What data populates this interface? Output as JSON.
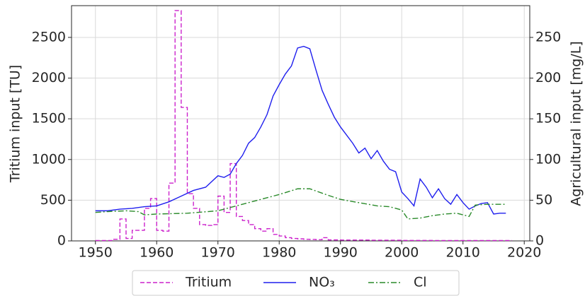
{
  "chart_data": {
    "type": "line",
    "x_label": null,
    "y_label": "Tritium input [TU]",
    "y2_label": "Agricultural input [mg/L]",
    "xlim": [
      1946.1,
      2020.9
    ],
    "xticks": [
      1950,
      1960,
      1970,
      1980,
      1990,
      2000,
      2010,
      2020
    ],
    "ylim": [
      0,
      2890
    ],
    "yticks": [
      0,
      500,
      1000,
      1500,
      2000,
      2500
    ],
    "y2lim": [
      0,
      289
    ],
    "y2ticks": [
      0,
      50,
      100,
      150,
      200,
      250
    ],
    "grid": true,
    "legend": "below",
    "series": [
      {
        "name": "Tritium",
        "color": "#cc22cc",
        "linestyle": "dashed",
        "step": true,
        "x": [
          1950,
          1951,
          1952,
          1953,
          1954,
          1955,
          1956,
          1957,
          1958,
          1959,
          1960,
          1961,
          1962,
          1963,
          1964,
          1965,
          1966,
          1967,
          1968,
          1969,
          1970,
          1971,
          1972,
          1973,
          1974,
          1975,
          1976,
          1977,
          1978,
          1979,
          1980,
          1981,
          1982,
          1983,
          1984,
          1985,
          1986,
          1987,
          1988,
          1990,
          1995,
          2000,
          2005,
          2010,
          2017
        ],
        "values": [
          5,
          5,
          5,
          20,
          270,
          30,
          130,
          130,
          400,
          520,
          130,
          120,
          710,
          2830,
          1640,
          580,
          400,
          200,
          190,
          200,
          550,
          350,
          950,
          300,
          250,
          200,
          150,
          120,
          150,
          80,
          60,
          40,
          30,
          25,
          20,
          18,
          15,
          40,
          12,
          10,
          8,
          6,
          5,
          5,
          5
        ]
      },
      {
        "name": "NO₃",
        "color": "#1f1fee",
        "linestyle": "solid",
        "axis": "y2",
        "x": [
          1950,
          1952,
          1954,
          1956,
          1958,
          1960,
          1962,
          1964,
          1966,
          1968,
          1970,
          1971,
          1972,
          1973,
          1974,
          1975,
          1976,
          1977,
          1978,
          1979,
          1980,
          1981,
          1982,
          1983,
          1984,
          1985,
          1986,
          1987,
          1988,
          1989,
          1990,
          1991,
          1992,
          1993,
          1994,
          1995,
          1996,
          1997,
          1998,
          1999,
          2000,
          2001,
          2002,
          2003,
          2004,
          2005,
          2006,
          2007,
          2008,
          2009,
          2010,
          2011,
          2012,
          2013,
          2014,
          2015,
          2016,
          2017
        ],
        "values": [
          37,
          37,
          39,
          40,
          42,
          43,
          48,
          55,
          62,
          66,
          80,
          78,
          82,
          95,
          105,
          120,
          127,
          140,
          155,
          178,
          192,
          205,
          215,
          237,
          239,
          236,
          210,
          185,
          168,
          152,
          140,
          130,
          120,
          108,
          114,
          101,
          111,
          98,
          88,
          85,
          60,
          52,
          43,
          76,
          66,
          53,
          64,
          52,
          45,
          57,
          47,
          39,
          43,
          46,
          47,
          33,
          34,
          34
        ]
      },
      {
        "name": "Cl",
        "color": "#2a8a2a",
        "linestyle": "dashdot",
        "axis": "y2",
        "x": [
          1950,
          1952,
          1955,
          1957,
          1958,
          1960,
          1965,
          1970,
          1975,
          1980,
          1983,
          1985,
          1988,
          1990,
          1993,
          1996,
          1998,
          2000,
          2001,
          2003,
          2005,
          2007,
          2009,
          2011,
          2012,
          2014,
          2017
        ],
        "values": [
          35,
          36,
          37,
          36,
          32,
          33,
          34,
          37,
          47,
          57,
          64,
          64,
          56,
          51,
          47,
          43,
          42,
          38,
          27,
          28,
          31,
          33,
          34,
          30,
          44,
          45,
          45
        ]
      }
    ]
  }
}
